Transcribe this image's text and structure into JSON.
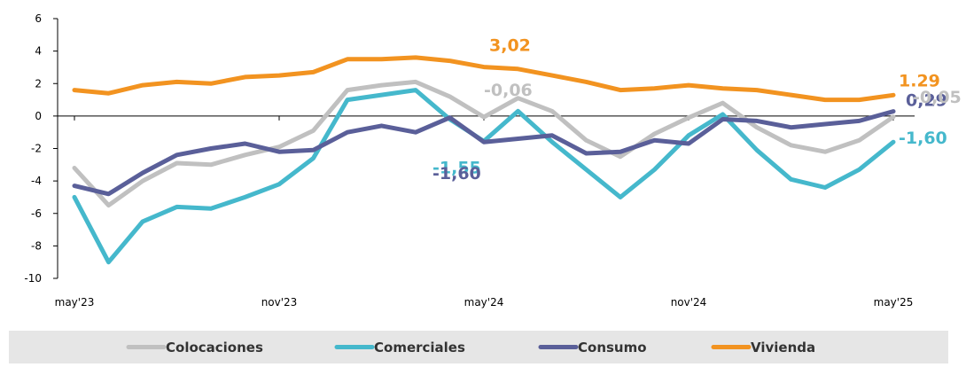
{
  "chart_data": {
    "type": "line",
    "title": "",
    "xlabel": "",
    "ylabel": "",
    "ylim": [
      -10,
      6
    ],
    "y_ticks": [
      6,
      4,
      2,
      0,
      -2,
      -4,
      -6,
      -8,
      -10
    ],
    "x_ticks": [
      "may'23",
      "nov'23",
      "may'24",
      "nov'24",
      "may'25"
    ],
    "x_tick_index": [
      0,
      6,
      12,
      18,
      24
    ],
    "categories": [
      "may'23",
      "jun'23",
      "jul'23",
      "ago'23",
      "sep'23",
      "oct'23",
      "nov'23",
      "dic'23",
      "ene'24",
      "feb'24",
      "mar'24",
      "abr'24",
      "may'24",
      "jun'24",
      "jul'24",
      "ago'24",
      "sep'24",
      "oct'24",
      "nov'24",
      "dic'24",
      "ene'25",
      "feb'25",
      "mar'25",
      "abr'25",
      "may'25"
    ],
    "grid": false,
    "legend_position": "bottom",
    "series": [
      {
        "name": "Colocaciones",
        "color": "#c0c0c0",
        "values": [
          -3.2,
          -5.5,
          -4.0,
          -2.9,
          -3.0,
          -2.4,
          -1.9,
          -0.9,
          1.6,
          1.9,
          2.1,
          1.2,
          -0.06,
          1.1,
          0.3,
          -1.5,
          -2.5,
          -1.1,
          -0.1,
          0.8,
          -0.7,
          -1.8,
          -2.2,
          -1.5,
          -0.05
        ]
      },
      {
        "name": "Comerciales",
        "color": "#45b8cc",
        "values": [
          -5.0,
          -9.0,
          -6.5,
          -5.6,
          -5.7,
          -5.0,
          -4.2,
          -2.6,
          1.0,
          1.3,
          1.6,
          -0.2,
          -1.55,
          0.3,
          -1.6,
          -3.3,
          -5.0,
          -3.3,
          -1.2,
          0.1,
          -2.1,
          -3.9,
          -4.4,
          -3.3,
          -1.6
        ]
      },
      {
        "name": "Consumo",
        "color": "#5a5f99",
        "values": [
          -4.3,
          -4.8,
          -3.5,
          -2.4,
          -2.0,
          -1.7,
          -2.2,
          -2.1,
          -1.0,
          -0.6,
          -1.0,
          -0.1,
          -1.6,
          -1.4,
          -1.2,
          -2.3,
          -2.2,
          -1.5,
          -1.7,
          -0.2,
          -0.3,
          -0.7,
          -0.5,
          -0.3,
          0.29
        ]
      },
      {
        "name": "Vivienda",
        "color": "#f29320",
        "values": [
          1.6,
          1.4,
          1.9,
          2.1,
          2.0,
          2.4,
          2.5,
          2.7,
          3.5,
          3.5,
          3.6,
          3.4,
          3.02,
          2.9,
          2.5,
          2.1,
          1.6,
          1.7,
          1.9,
          1.7,
          1.6,
          1.3,
          1.0,
          1.0,
          1.29
        ]
      }
    ],
    "annotations": [
      {
        "text": "3,02",
        "series": "Vivienda",
        "index": 12,
        "color": "#f29320"
      },
      {
        "text": "-0,06",
        "series": "Colocaciones",
        "index": 12,
        "color": "#c0c0c0"
      },
      {
        "text": "-1,55",
        "series": "Comerciales",
        "index": 12,
        "color": "#45b8cc"
      },
      {
        "text": "-1,60",
        "series": "Consumo",
        "index": 12,
        "color": "#5a5f99"
      },
      {
        "text": "1.29",
        "series": "Vivienda",
        "index": 24,
        "color": "#f29320"
      },
      {
        "text": "0,29",
        "series": "Consumo",
        "index": 24,
        "color": "#5a5f99"
      },
      {
        "text": "-0,05",
        "series": "Colocaciones",
        "index": 24,
        "color": "#c0c0c0"
      },
      {
        "text": "-1,60",
        "series": "Comerciales",
        "index": 24,
        "color": "#45b8cc"
      }
    ]
  }
}
